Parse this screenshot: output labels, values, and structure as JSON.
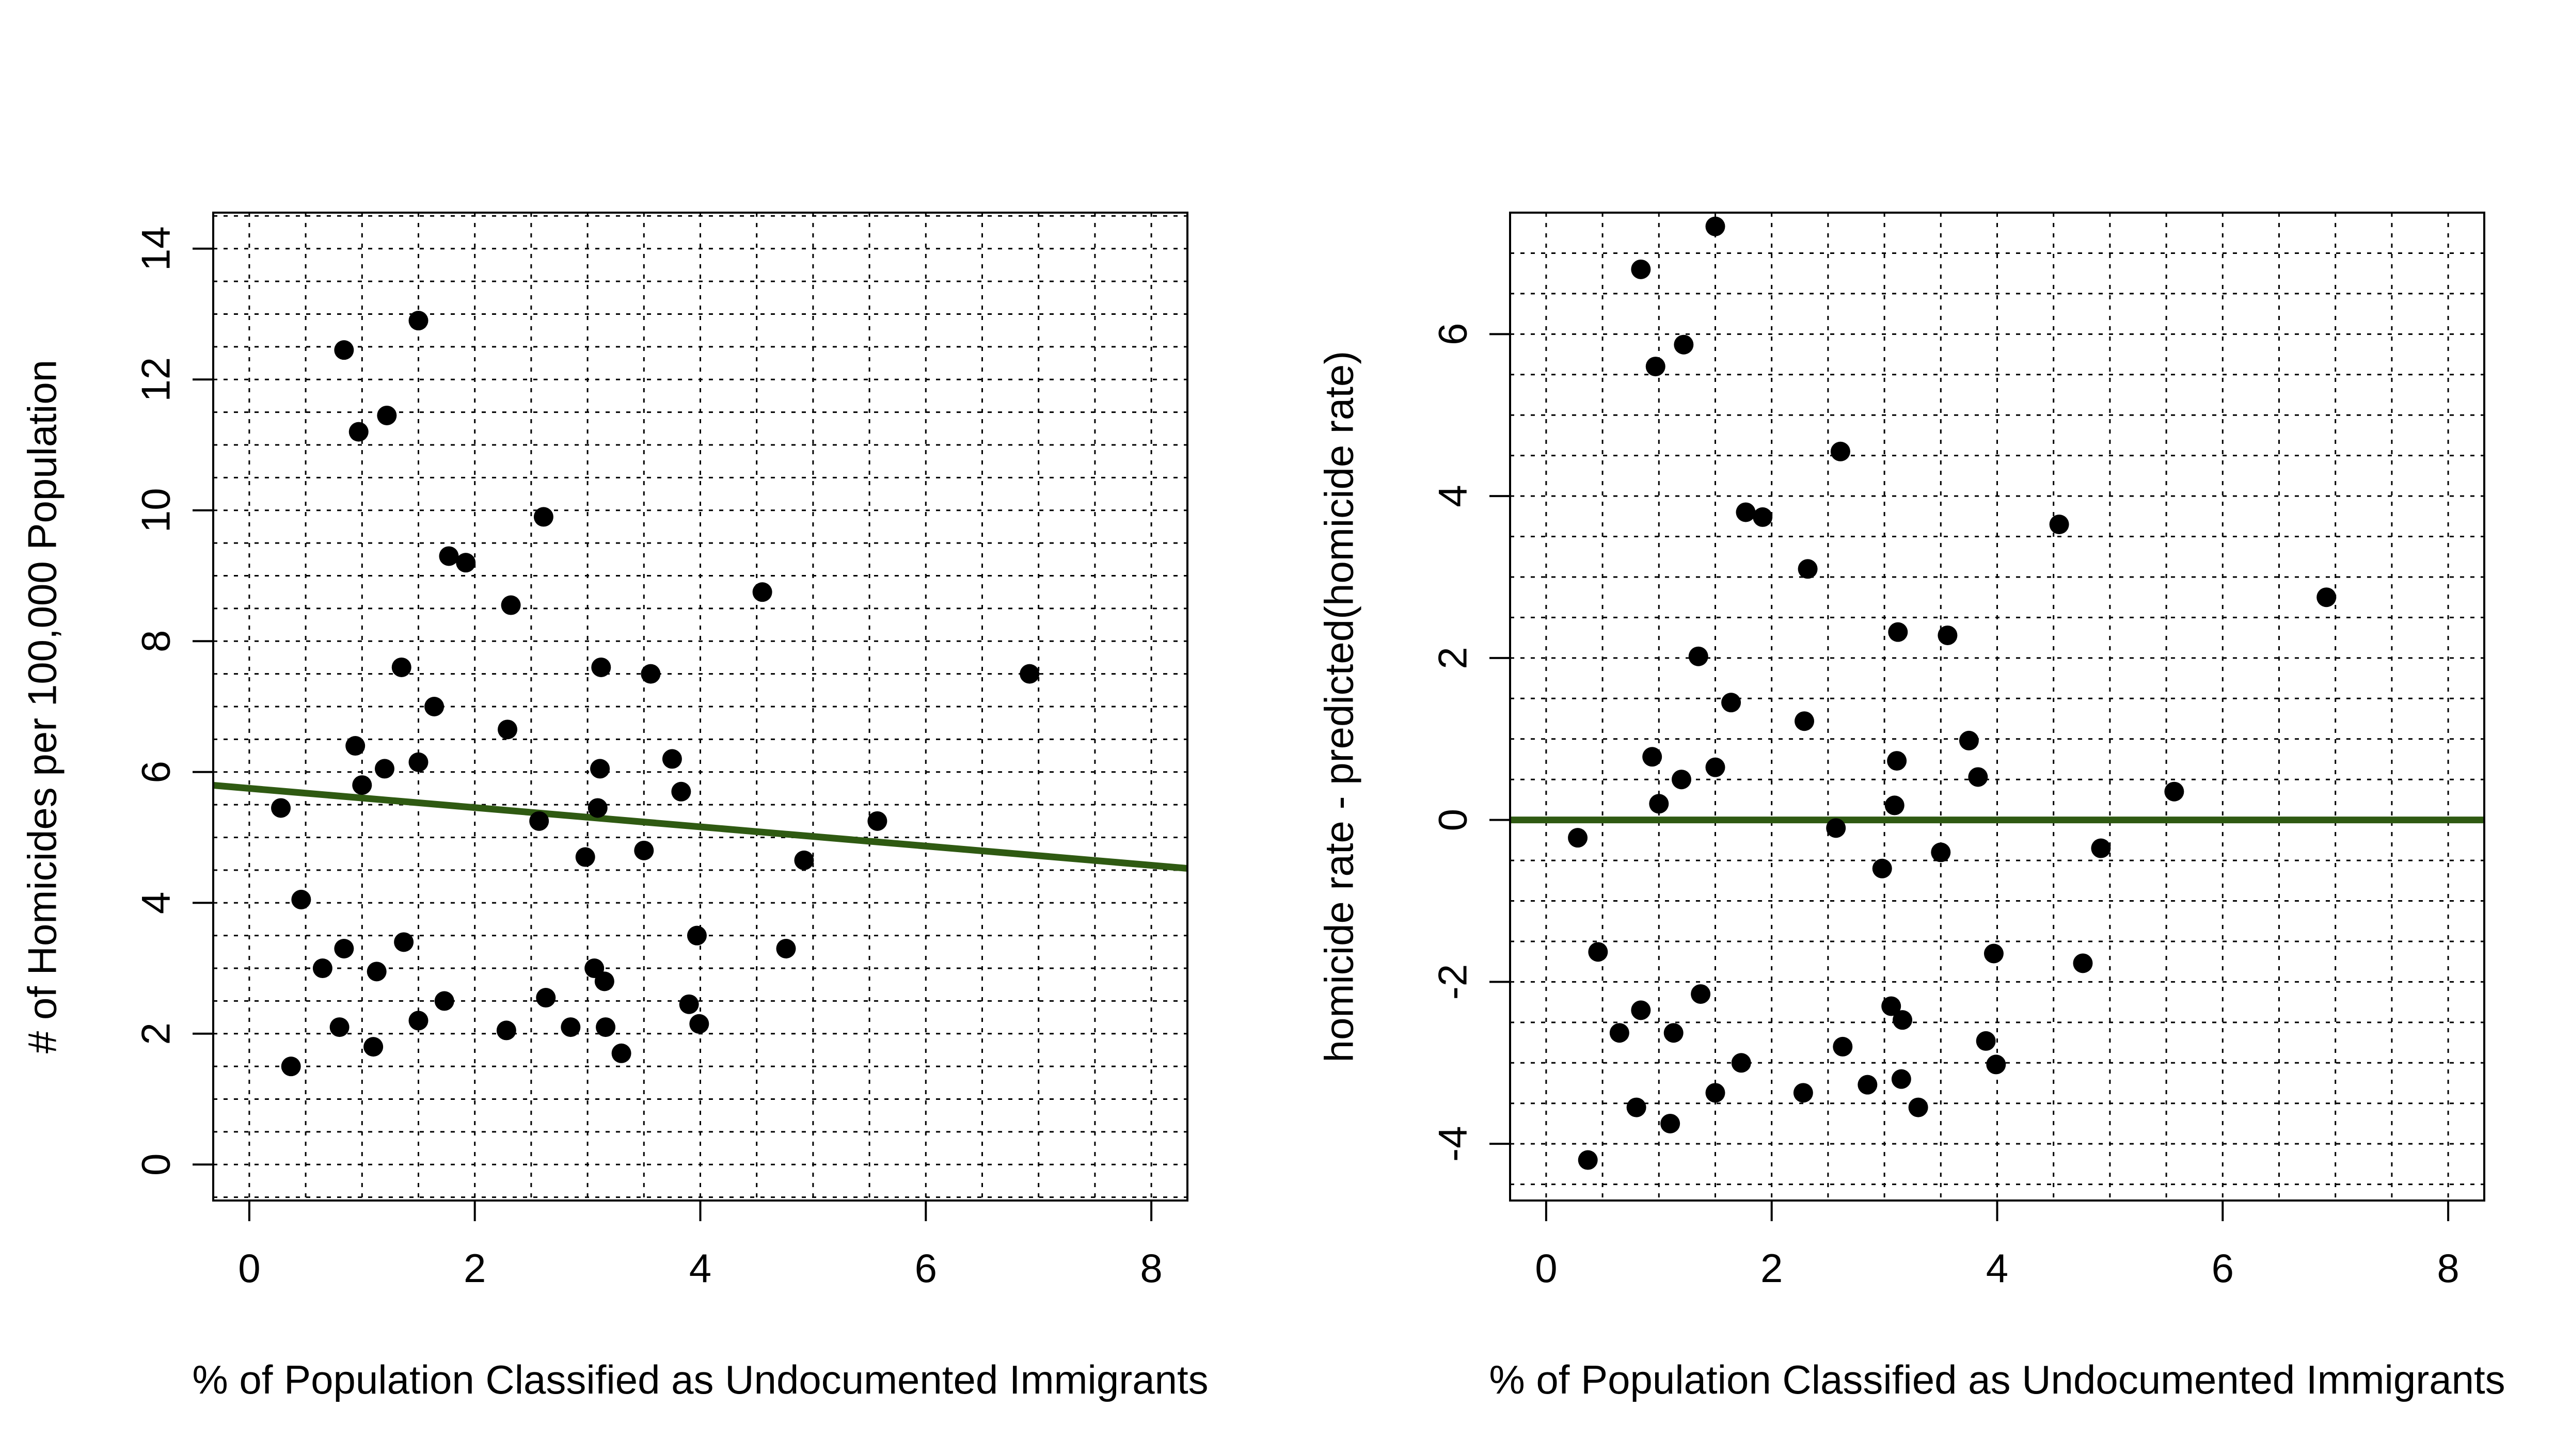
{
  "chart_data": [
    {
      "type": "scatter",
      "title": "",
      "xlabel": "% of Population Classified as Undocumented Immigrants",
      "ylabel": "# of Homicides per 100,000 Population",
      "xlim": [
        -0.32,
        8.32
      ],
      "ylim": [
        -0.55,
        14.55
      ],
      "xticks": [
        0,
        2,
        4,
        6,
        8
      ],
      "yticks": [
        0,
        2,
        4,
        6,
        8,
        10,
        12,
        14
      ],
      "xtick_labels": [
        "0",
        "2",
        "4",
        "6",
        "8"
      ],
      "ytick_labels": [
        "0",
        "2",
        "4",
        "6",
        "8",
        "10",
        "12",
        "14"
      ],
      "grid": true,
      "fit_line": {
        "intercept": 5.75,
        "slope": -0.147,
        "color": "#2f5a12"
      },
      "point_color": "#000000",
      "points": [
        {
          "x": 0.28,
          "y": 5.45
        },
        {
          "x": 0.37,
          "y": 1.5
        },
        {
          "x": 0.46,
          "y": 4.05
        },
        {
          "x": 0.65,
          "y": 3.0
        },
        {
          "x": 0.8,
          "y": 2.1
        },
        {
          "x": 0.84,
          "y": 3.3
        },
        {
          "x": 0.84,
          "y": 12.45
        },
        {
          "x": 0.94,
          "y": 6.4
        },
        {
          "x": 0.97,
          "y": 11.2
        },
        {
          "x": 1.0,
          "y": 5.8
        },
        {
          "x": 1.1,
          "y": 1.8
        },
        {
          "x": 1.13,
          "y": 2.95
        },
        {
          "x": 1.2,
          "y": 6.05
        },
        {
          "x": 1.22,
          "y": 11.45
        },
        {
          "x": 1.35,
          "y": 7.6
        },
        {
          "x": 1.37,
          "y": 3.4
        },
        {
          "x": 1.5,
          "y": 2.2
        },
        {
          "x": 1.5,
          "y": 6.15
        },
        {
          "x": 1.5,
          "y": 12.9
        },
        {
          "x": 1.64,
          "y": 7.0
        },
        {
          "x": 1.73,
          "y": 2.5
        },
        {
          "x": 1.77,
          "y": 9.3
        },
        {
          "x": 1.92,
          "y": 9.2
        },
        {
          "x": 2.28,
          "y": 2.05
        },
        {
          "x": 2.29,
          "y": 6.65
        },
        {
          "x": 2.32,
          "y": 8.55
        },
        {
          "x": 2.57,
          "y": 5.25
        },
        {
          "x": 2.61,
          "y": 9.9
        },
        {
          "x": 2.63,
          "y": 2.55
        },
        {
          "x": 2.85,
          "y": 2.1
        },
        {
          "x": 2.98,
          "y": 4.7
        },
        {
          "x": 3.06,
          "y": 3.0
        },
        {
          "x": 3.09,
          "y": 5.45
        },
        {
          "x": 3.11,
          "y": 6.05
        },
        {
          "x": 3.12,
          "y": 7.6
        },
        {
          "x": 3.15,
          "y": 2.8
        },
        {
          "x": 3.16,
          "y": 2.1
        },
        {
          "x": 3.3,
          "y": 1.7
        },
        {
          "x": 3.5,
          "y": 4.8
        },
        {
          "x": 3.56,
          "y": 7.5
        },
        {
          "x": 3.75,
          "y": 6.2
        },
        {
          "x": 3.83,
          "y": 5.7
        },
        {
          "x": 3.9,
          "y": 2.45
        },
        {
          "x": 3.97,
          "y": 3.5
        },
        {
          "x": 3.99,
          "y": 2.15
        },
        {
          "x": 4.55,
          "y": 8.75
        },
        {
          "x": 4.76,
          "y": 3.3
        },
        {
          "x": 4.92,
          "y": 4.65
        },
        {
          "x": 5.57,
          "y": 5.25
        },
        {
          "x": 6.92,
          "y": 7.5
        }
      ]
    },
    {
      "type": "scatter",
      "title": "",
      "xlabel": "% of Population Classified as Undocumented Immigrants",
      "ylabel": "homicide rate - predicted(homicide rate)",
      "xlim": [
        -0.32,
        8.32
      ],
      "ylim": [
        -4.7,
        7.5
      ],
      "xticks": [
        0,
        2,
        4,
        6,
        8
      ],
      "yticks": [
        -4,
        -2,
        0,
        2,
        4,
        6
      ],
      "xtick_labels": [
        "0",
        "2",
        "4",
        "6",
        "8"
      ],
      "ytick_labels": [
        "-4",
        "-2",
        "0",
        "2",
        "4",
        "6"
      ],
      "grid": true,
      "fit_line": {
        "intercept": 0,
        "slope": 0,
        "color": "#2f5a12"
      },
      "point_color": "#000000",
      "points": [
        {
          "x": 0.28,
          "y": -0.22
        },
        {
          "x": 0.37,
          "y": -4.2
        },
        {
          "x": 0.46,
          "y": -1.63
        },
        {
          "x": 0.65,
          "y": -2.63
        },
        {
          "x": 0.8,
          "y": -3.55
        },
        {
          "x": 0.84,
          "y": -2.35
        },
        {
          "x": 0.84,
          "y": 6.8
        },
        {
          "x": 0.94,
          "y": 0.78
        },
        {
          "x": 0.97,
          "y": 5.6
        },
        {
          "x": 1.0,
          "y": 0.2
        },
        {
          "x": 1.1,
          "y": -3.75
        },
        {
          "x": 1.13,
          "y": -2.63
        },
        {
          "x": 1.2,
          "y": 0.5
        },
        {
          "x": 1.22,
          "y": 5.87
        },
        {
          "x": 1.35,
          "y": 2.02
        },
        {
          "x": 1.37,
          "y": -2.15
        },
        {
          "x": 1.5,
          "y": -3.37
        },
        {
          "x": 1.5,
          "y": 0.65
        },
        {
          "x": 1.5,
          "y": 7.33
        },
        {
          "x": 1.64,
          "y": 1.45
        },
        {
          "x": 1.73,
          "y": -3.0
        },
        {
          "x": 1.77,
          "y": 3.8
        },
        {
          "x": 1.92,
          "y": 3.74
        },
        {
          "x": 2.28,
          "y": -3.37
        },
        {
          "x": 2.29,
          "y": 1.22
        },
        {
          "x": 2.32,
          "y": 3.1
        },
        {
          "x": 2.57,
          "y": -0.1
        },
        {
          "x": 2.61,
          "y": 4.55
        },
        {
          "x": 2.63,
          "y": -2.8
        },
        {
          "x": 2.85,
          "y": -3.27
        },
        {
          "x": 2.98,
          "y": -0.6
        },
        {
          "x": 3.06,
          "y": -2.3
        },
        {
          "x": 3.09,
          "y": 0.18
        },
        {
          "x": 3.11,
          "y": 0.73
        },
        {
          "x": 3.12,
          "y": 2.32
        },
        {
          "x": 3.15,
          "y": -3.2
        },
        {
          "x": 3.16,
          "y": -2.47
        },
        {
          "x": 3.3,
          "y": -3.55
        },
        {
          "x": 3.5,
          "y": -0.4
        },
        {
          "x": 3.56,
          "y": 2.28
        },
        {
          "x": 3.75,
          "y": 0.98
        },
        {
          "x": 3.83,
          "y": 0.53
        },
        {
          "x": 3.9,
          "y": -2.73
        },
        {
          "x": 3.97,
          "y": -1.65
        },
        {
          "x": 3.99,
          "y": -3.02
        },
        {
          "x": 4.55,
          "y": 3.65
        },
        {
          "x": 4.76,
          "y": -1.77
        },
        {
          "x": 4.92,
          "y": -0.35
        },
        {
          "x": 5.57,
          "y": 0.35
        },
        {
          "x": 6.92,
          "y": 2.75
        }
      ]
    }
  ]
}
